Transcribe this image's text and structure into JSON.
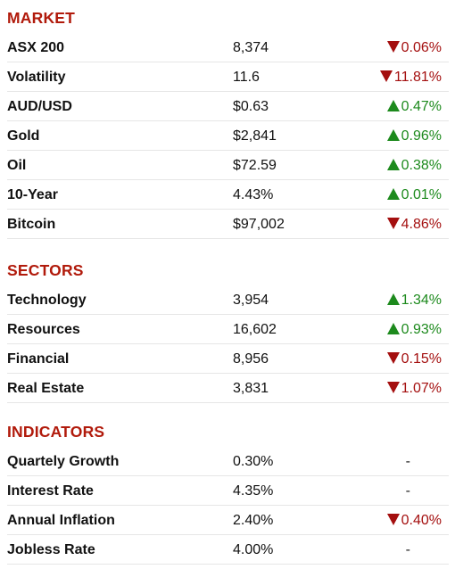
{
  "colors": {
    "section_title": "#b11a0b",
    "up": "#1d8a1d",
    "down": "#a40f0f",
    "divider": "#e6e6e6"
  },
  "market": {
    "title": "MARKET",
    "rows": [
      {
        "name": "ASX 200",
        "value": "8,374",
        "change": "0.06%",
        "direction": "down"
      },
      {
        "name": "Volatility",
        "value": "11.6",
        "change": "11.81%",
        "direction": "down"
      },
      {
        "name": "AUD/USD",
        "value": "$0.63",
        "change": "0.47%",
        "direction": "up"
      },
      {
        "name": "Gold",
        "value": "$2,841",
        "change": "0.96%",
        "direction": "up"
      },
      {
        "name": "Oil",
        "value": "$72.59",
        "change": "0.38%",
        "direction": "up"
      },
      {
        "name": "10-Year",
        "value": "4.43%",
        "change": "0.01%",
        "direction": "up"
      },
      {
        "name": "Bitcoin",
        "value": "$97,002",
        "change": "4.86%",
        "direction": "down"
      }
    ]
  },
  "sectors": {
    "title": "SECTORS",
    "rows": [
      {
        "name": "Technology",
        "value": "3,954",
        "change": "1.34%",
        "direction": "up"
      },
      {
        "name": "Resources",
        "value": "16,602",
        "change": "0.93%",
        "direction": "up"
      },
      {
        "name": "Financial",
        "value": "8,956",
        "change": "0.15%",
        "direction": "down"
      },
      {
        "name": "Real Estate",
        "value": "3,831",
        "change": "1.07%",
        "direction": "down"
      }
    ]
  },
  "indicators": {
    "title": "INDICATORS",
    "rows": [
      {
        "name": "Quartely Growth",
        "value": "0.30%",
        "change": "-",
        "direction": "flat"
      },
      {
        "name": "Interest Rate",
        "value": "4.35%",
        "change": "-",
        "direction": "flat"
      },
      {
        "name": "Annual Inflation",
        "value": "2.40%",
        "change": "0.40%",
        "direction": "down"
      },
      {
        "name": "Jobless Rate",
        "value": "4.00%",
        "change": "-",
        "direction": "flat"
      }
    ]
  }
}
